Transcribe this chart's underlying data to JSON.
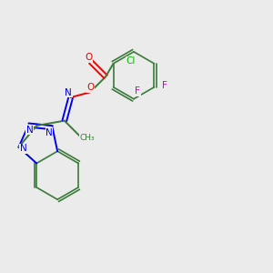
{
  "background_color": "#ebebeb",
  "atom_colors": {
    "C": "#3a7a3a",
    "N": "#0000ee",
    "O": "#ee0000",
    "F": "#cc00cc",
    "Cl": "#00bb00"
  },
  "figsize": [
    3.0,
    3.0
  ],
  "dpi": 100
}
